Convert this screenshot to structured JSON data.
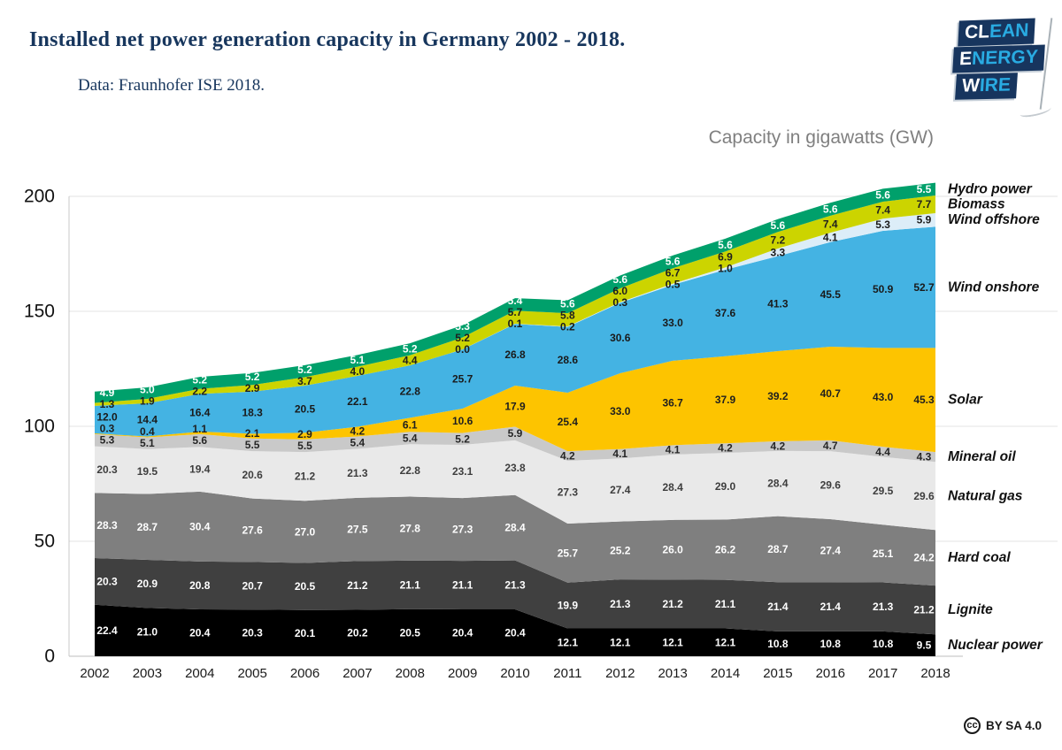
{
  "header": {
    "title": "Installed net power generation capacity in Germany 2002 - 2018.",
    "subtitle": "Data: Fraunhofer ISE 2018."
  },
  "logo": {
    "lines": [
      {
        "white": "CL",
        "accent": "EAN"
      },
      {
        "white": "E",
        "accent": "NERGY"
      },
      {
        "white": "W",
        "accent": "IRE"
      }
    ],
    "bg_color": "#17355e",
    "accent_color": "#29abe2"
  },
  "footer": {
    "cc_icon": "cc",
    "license": "BY SA 4.0"
  },
  "chart_data": {
    "type": "area",
    "stacked": true,
    "title": "Installed net power generation capacity in Germany 2002 - 2018.",
    "ylabel": "Capacity in gigawatts (GW)",
    "grid": true,
    "legend_position": "right",
    "x": [
      2002,
      2003,
      2004,
      2005,
      2006,
      2007,
      2008,
      2009,
      2010,
      2011,
      2012,
      2013,
      2014,
      2015,
      2016,
      2017,
      2018
    ],
    "ylim": [
      0,
      200
    ],
    "yticks": [
      0,
      50,
      100,
      150,
      200
    ],
    "series": [
      {
        "name": "Nuclear power",
        "color": "#000000",
        "label_color": "#ffffff",
        "values": [
          22.4,
          21.0,
          20.4,
          20.3,
          20.1,
          20.2,
          20.5,
          20.4,
          20.4,
          12.1,
          12.1,
          12.1,
          12.1,
          10.8,
          10.8,
          10.8,
          9.5
        ]
      },
      {
        "name": "Lignite",
        "color": "#404040",
        "label_color": "#ffffff",
        "values": [
          20.3,
          20.9,
          20.8,
          20.7,
          20.5,
          21.2,
          21.1,
          21.1,
          21.3,
          19.9,
          21.3,
          21.2,
          21.1,
          21.4,
          21.4,
          21.3,
          21.2
        ]
      },
      {
        "name": "Hard coal",
        "color": "#7f7f7f",
        "label_color": "#ffffff",
        "values": [
          28.3,
          28.7,
          30.4,
          27.6,
          27.0,
          27.5,
          27.8,
          27.3,
          28.4,
          25.7,
          25.2,
          26.0,
          26.2,
          28.7,
          27.4,
          25.1,
          24.2
        ]
      },
      {
        "name": "Natural gas",
        "color": "#e9e9e9",
        "label_color": "#3d3d3d",
        "values": [
          20.3,
          19.5,
          19.4,
          20.6,
          21.2,
          21.3,
          22.8,
          23.1,
          23.8,
          27.3,
          27.4,
          28.4,
          29.0,
          28.4,
          29.6,
          29.5,
          29.6
        ]
      },
      {
        "name": "Mineral oil",
        "color": "#c9c9c9",
        "label_color": "#262626",
        "values": [
          5.3,
          5.1,
          5.6,
          5.5,
          5.5,
          5.4,
          5.4,
          5.2,
          5.9,
          4.2,
          4.1,
          4.1,
          4.2,
          4.2,
          4.7,
          4.4,
          4.3
        ]
      },
      {
        "name": "Solar",
        "color": "#fdc400",
        "label_color": "#1f1f1f",
        "values": [
          0.3,
          0.4,
          1.1,
          2.1,
          2.9,
          4.2,
          6.1,
          10.6,
          17.9,
          25.4,
          33.0,
          36.7,
          37.9,
          39.2,
          40.7,
          43.0,
          45.3
        ]
      },
      {
        "name": "Wind onshore",
        "color": "#44b3e3",
        "label_color": "#1a1a1a",
        "values": [
          12.0,
          14.4,
          16.4,
          18.3,
          20.5,
          22.1,
          22.8,
          25.7,
          26.8,
          28.6,
          30.6,
          33.0,
          37.6,
          41.3,
          45.5,
          50.9,
          52.7
        ]
      },
      {
        "name": "Wind offshore",
        "color": "#dcedf8",
        "label_color": "#1a1a1a",
        "values": [
          0,
          0,
          0,
          0,
          0,
          0,
          0,
          0.04,
          0.1,
          0.2,
          0.3,
          0.5,
          1.0,
          3.3,
          4.1,
          5.3,
          5.9
        ],
        "labels": [
          null,
          null,
          null,
          null,
          null,
          null,
          null,
          "0.0",
          "0.1",
          "0.2",
          "0.3",
          "0.5",
          "1.0",
          "3.3",
          "4.1",
          "5.3",
          "5.9"
        ]
      },
      {
        "name": "Biomass",
        "color": "#ccd400",
        "label_color": "#1f1f1f",
        "values": [
          1.3,
          1.9,
          2.2,
          2.9,
          3.7,
          4.0,
          4.4,
          5.2,
          5.7,
          5.8,
          6.0,
          6.7,
          6.9,
          7.2,
          7.4,
          7.4,
          7.7
        ]
      },
      {
        "name": "Hydro power",
        "color": "#00a06b",
        "label_color": "#ffffff",
        "values": [
          4.9,
          5.0,
          5.2,
          5.2,
          5.2,
          5.1,
          5.2,
          5.3,
          5.4,
          5.6,
          5.6,
          5.6,
          5.6,
          5.6,
          5.6,
          5.6,
          5.5
        ]
      }
    ]
  }
}
